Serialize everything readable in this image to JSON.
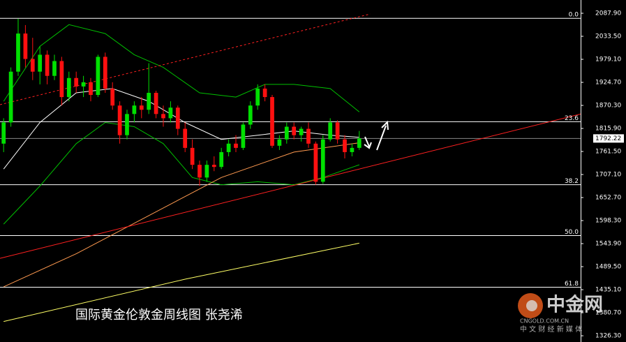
{
  "chart_data": {
    "type": "candlestick",
    "title": "国际黄金伦敦金周线图  张尧浠",
    "watermark": {
      "name": "中金网",
      "url": "CNGOLD.COM.CN",
      "tagline": "中 文 财 经 新 媒 体"
    },
    "up_color": "#00e000",
    "down_color": "#ff1010",
    "xlim": [
      -0.5,
      79.5
    ],
    "ylim": [
      1311.6,
      2119.2
    ],
    "yticks": [
      {
        "value": 2087.9,
        "label": "2087.90"
      },
      {
        "value": 2033.5,
        "label": "2033.50"
      },
      {
        "value": 1979.1,
        "label": "1979.10"
      },
      {
        "value": 1924.7,
        "label": "1924.70"
      },
      {
        "value": 1870.3,
        "label": "1870.30"
      },
      {
        "value": 1815.9,
        "label": "1815.90"
      },
      {
        "value": 1761.5,
        "label": "1761.50"
      },
      {
        "value": 1707.1,
        "label": "1707.10"
      },
      {
        "value": 1652.7,
        "label": "1652.70"
      },
      {
        "value": 1598.3,
        "label": "1598.30"
      },
      {
        "value": 1543.9,
        "label": "1543.90"
      },
      {
        "value": 1489.5,
        "label": "1489.50"
      },
      {
        "value": 1435.1,
        "label": "1435.10"
      },
      {
        "value": 1380.7,
        "label": "1380.70"
      },
      {
        "value": 1326.3,
        "label": "1326.30"
      }
    ],
    "last_price": 1792.22,
    "fib_levels": [
      {
        "value": 2076,
        "label": "0.0"
      },
      {
        "value": 1831.8,
        "label": "23.6"
      },
      {
        "value": 1683,
        "label": "38.2"
      },
      {
        "value": 1563,
        "label": "50.0"
      },
      {
        "value": 1441,
        "label": "61.8"
      }
    ],
    "open": [
      1780,
      1830,
      1950,
      2040,
      1980,
      1950,
      1990,
      1940,
      1975,
      1890,
      1935,
      1915,
      1925,
      1895,
      1985,
      1910,
      1870,
      1800,
      1850,
      1870,
      1860,
      1900,
      1850,
      1840,
      1865,
      1815,
      1770,
      1730,
      1700,
      1730,
      1725,
      1760,
      1780,
      1770,
      1825,
      1870,
      1910,
      1890,
      1775,
      1790,
      1820,
      1800,
      1815,
      1780,
      1690,
      1790,
      1830,
      1790,
      1760,
      1770
    ],
    "high": [
      1840,
      1960,
      2075,
      2060,
      2030,
      2010,
      2000,
      1990,
      1985,
      1950,
      1950,
      1940,
      1935,
      1990,
      1995,
      1925,
      1880,
      1860,
      1880,
      1890,
      1970,
      1905,
      1870,
      1880,
      1870,
      1830,
      1790,
      1740,
      1740,
      1750,
      1770,
      1790,
      1800,
      1830,
      1880,
      1920,
      1920,
      1895,
      1800,
      1830,
      1830,
      1820,
      1830,
      1785,
      1800,
      1840,
      1835,
      1800,
      1780,
      1810
    ],
    "low": [
      1760,
      1820,
      1940,
      1960,
      1930,
      1920,
      1920,
      1930,
      1870,
      1880,
      1900,
      1890,
      1880,
      1890,
      1900,
      1860,
      1780,
      1790,
      1830,
      1840,
      1850,
      1840,
      1820,
      1830,
      1800,
      1760,
      1720,
      1680,
      1690,
      1715,
      1720,
      1750,
      1760,
      1765,
      1815,
      1860,
      1880,
      1770,
      1765,
      1780,
      1790,
      1785,
      1770,
      1683,
      1685,
      1785,
      1780,
      1745,
      1750,
      1765
    ],
    "close": [
      1830,
      1950,
      2040,
      1980,
      1950,
      1990,
      1940,
      1975,
      1890,
      1935,
      1915,
      1925,
      1895,
      1985,
      1910,
      1870,
      1800,
      1850,
      1870,
      1860,
      1900,
      1850,
      1840,
      1865,
      1815,
      1770,
      1730,
      1700,
      1730,
      1725,
      1760,
      1780,
      1770,
      1825,
      1870,
      1910,
      1890,
      1775,
      1790,
      1820,
      1800,
      1815,
      1780,
      1690,
      1790,
      1830,
      1790,
      1760,
      1770,
      1792.22
    ],
    "overlays": [
      {
        "color": "#00c000",
        "x": [
          0,
          5,
          9,
          14,
          18,
          22,
          27,
          32,
          36,
          40,
          45,
          49
        ],
        "values": [
          1880,
          2010,
          2061,
          2040,
          1990,
          1960,
          1900,
          1890,
          1920,
          1920,
          1910,
          1855
        ]
      },
      {
        "color": "#00c000",
        "x": [
          0,
          5,
          10,
          14,
          18,
          22,
          26,
          30,
          35,
          40,
          44,
          49
        ],
        "values": [
          1590,
          1680,
          1780,
          1830,
          1820,
          1780,
          1700,
          1683,
          1690,
          1683,
          1700,
          1730
        ]
      },
      {
        "color": "#ffffff",
        "x": [
          0,
          5,
          10,
          15,
          20,
          25,
          30,
          35,
          40,
          45,
          49
        ],
        "values": [
          1720,
          1830,
          1900,
          1910,
          1880,
          1830,
          1790,
          1800,
          1810,
          1800,
          1795
        ]
      },
      {
        "color": "#ff9a50",
        "x": [
          0,
          10,
          20,
          30,
          40,
          49
        ],
        "values": [
          1442,
          1520,
          1610,
          1700,
          1760,
          1782
        ]
      },
      {
        "color": "#ffff66",
        "x": [
          0,
          25,
          49
        ],
        "values": [
          1360,
          1460,
          1545
        ]
      }
    ],
    "trend_lines": [
      {
        "color": "#ff2020",
        "dash": false,
        "x": [
          -0.5,
          79.5
        ],
        "values": [
          1509,
          1850
        ]
      },
      {
        "color": "#ff2020",
        "dash": true,
        "x": [
          -0.5,
          50.5
        ],
        "values": [
          1872,
          2086
        ]
      }
    ]
  }
}
